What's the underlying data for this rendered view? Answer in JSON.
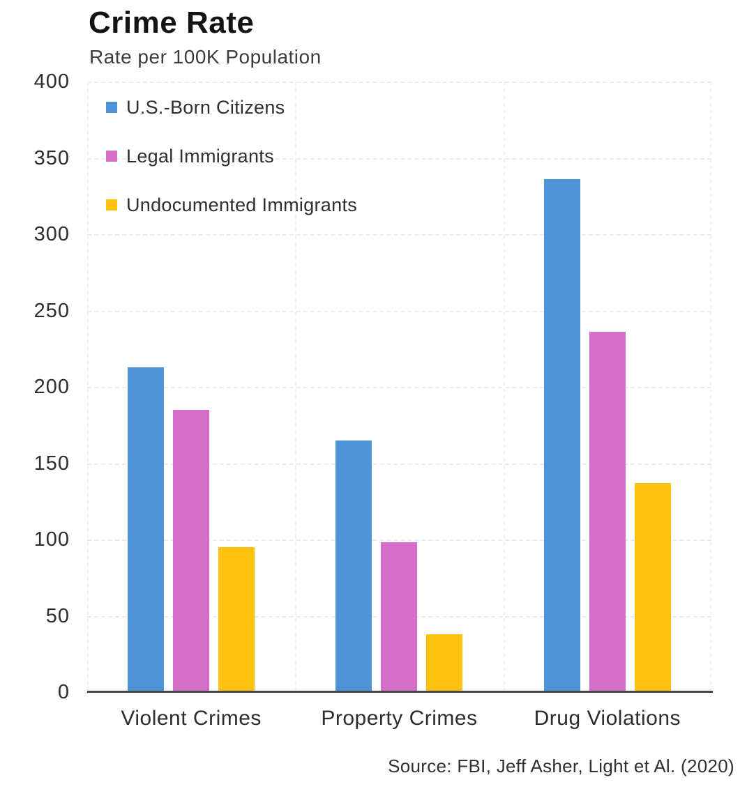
{
  "header": {
    "title": "Crime Rate",
    "subtitle": "Rate per 100K Population"
  },
  "source": "Source: FBI, Jeff Asher, Light et Al. (2020)",
  "colors": {
    "us_born": "#4f94d9",
    "legal": "#d56ec9",
    "undocumented": "#fec10d",
    "axis": "#454545",
    "grid_horizontal": "#edebed",
    "grid_vertical": "#f2f0f2"
  },
  "chart_data": {
    "type": "bar",
    "title": "Crime Rate",
    "subtitle": "Rate per 100K Population",
    "categories": [
      "Violent Crimes",
      "Property Crimes",
      "Drug Violations"
    ],
    "series": [
      {
        "name": "U.S.-Born Citizens",
        "color": "#4f94d9",
        "values": [
          213,
          165,
          336
        ]
      },
      {
        "name": "Legal Immigrants",
        "color": "#d56ec9",
        "values": [
          185,
          98,
          236
        ]
      },
      {
        "name": "Undocumented Immigrants",
        "color": "#fec10d",
        "values": [
          95,
          38,
          137
        ]
      }
    ],
    "xlabel": "",
    "ylabel": "",
    "ylim": [
      0,
      400
    ],
    "y_ticks": [
      400,
      350,
      300,
      250,
      200,
      150,
      100,
      50,
      0
    ],
    "grid": true,
    "legend_position": "top-left"
  }
}
